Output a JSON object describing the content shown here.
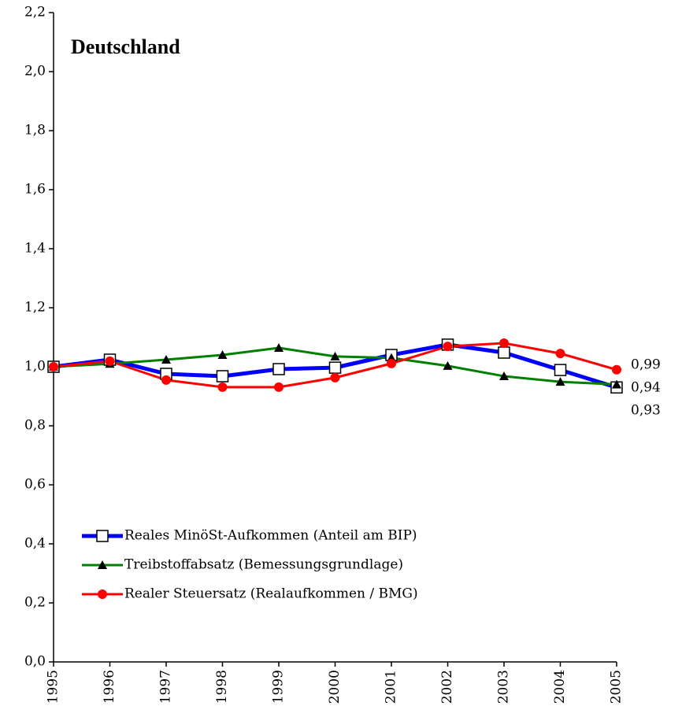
{
  "chart_data": {
    "type": "line",
    "title": "Deutschland",
    "x": [
      "1995",
      "1996",
      "1997",
      "1998",
      "1999",
      "2000",
      "2001",
      "2002",
      "2003",
      "2004",
      "2005"
    ],
    "ylim": [
      0,
      2.2
    ],
    "yticks": [
      {
        "value": 0,
        "label": "0,0"
      },
      {
        "value": 0.2,
        "label": "0,2"
      },
      {
        "value": 0.4,
        "label": "0,4"
      },
      {
        "value": 0.6,
        "label": "0,6"
      },
      {
        "value": 0.8,
        "label": "0,8"
      },
      {
        "value": 1.0,
        "label": "1,0"
      },
      {
        "value": 1.2,
        "label": "1,2"
      },
      {
        "value": 1.4,
        "label": "1,4"
      },
      {
        "value": 1.6,
        "label": "1,6"
      },
      {
        "value": 1.8,
        "label": "1,8"
      },
      {
        "value": 2.0,
        "label": "2,0"
      },
      {
        "value": 2.2,
        "label": "2,2"
      }
    ],
    "grid": false,
    "legend": "bottom-left",
    "series": [
      {
        "name": "Reales MinöSt-Aufkommen (Anteil am BIP)",
        "color": "#0000ff",
        "marker": "square",
        "values": [
          1.0,
          1.024,
          0.976,
          0.968,
          0.992,
          0.997,
          1.04,
          1.075,
          1.048,
          0.989,
          0.93
        ],
        "value_labels": [
          null,
          null,
          null,
          null,
          null,
          null,
          null,
          null,
          null,
          null,
          "0,93"
        ]
      },
      {
        "name": "Treibstoffabsatz (Bemessungsgrundlage)",
        "color": "#008000",
        "marker": "triangle",
        "values": [
          1.0,
          1.01,
          1.024,
          1.04,
          1.064,
          1.035,
          1.03,
          1.003,
          0.968,
          0.949,
          0.94
        ],
        "value_labels": [
          null,
          null,
          null,
          null,
          null,
          null,
          null,
          null,
          null,
          null,
          "0,94"
        ]
      },
      {
        "name": "Realer Steuersatz (Realaufkommen / BMG)",
        "color": "#ff0000",
        "marker": "circle",
        "values": [
          1.0,
          1.019,
          0.955,
          0.931,
          0.931,
          0.963,
          1.011,
          1.069,
          1.08,
          1.045,
          0.99
        ],
        "value_labels": [
          null,
          null,
          null,
          null,
          null,
          null,
          null,
          null,
          null,
          null,
          "0,99"
        ]
      }
    ]
  }
}
